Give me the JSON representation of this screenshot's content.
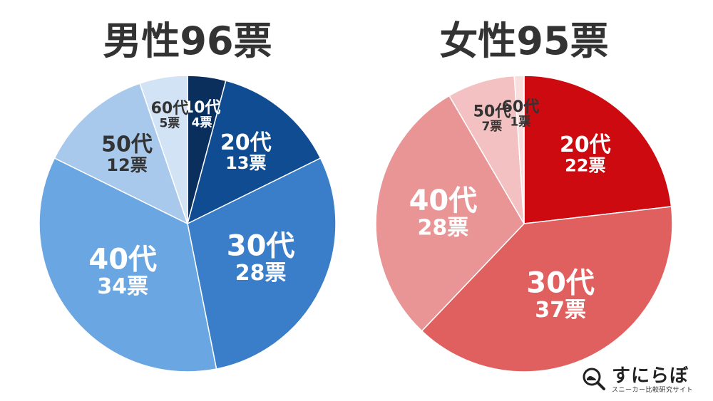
{
  "chart_data": [
    {
      "type": "pie",
      "title": "男性96票",
      "slices": [
        {
          "age": "10代",
          "votes": 4,
          "value_label": "4票",
          "color": "#0b2f5c",
          "text_color": "#ffffff"
        },
        {
          "age": "20代",
          "votes": 13,
          "value_label": "13票",
          "color": "#0f4c92",
          "text_color": "#ffffff"
        },
        {
          "age": "30代",
          "votes": 28,
          "value_label": "28票",
          "color": "#3a7dc8",
          "text_color": "#ffffff"
        },
        {
          "age": "40代",
          "votes": 34,
          "value_label": "34票",
          "color": "#6aa6e2",
          "text_color": "#ffffff"
        },
        {
          "age": "50代",
          "votes": 12,
          "value_label": "12票",
          "color": "#a9c9ec",
          "text_color": "#333333"
        },
        {
          "age": "60代",
          "votes": 5,
          "value_label": "5票",
          "color": "#d1e3f4",
          "text_color": "#333333"
        }
      ]
    },
    {
      "type": "pie",
      "title": "女性95票",
      "slices": [
        {
          "age": "20代",
          "votes": 22,
          "value_label": "22票",
          "color": "#cc0a10",
          "text_color": "#ffffff"
        },
        {
          "age": "30代",
          "votes": 37,
          "value_label": "37票",
          "color": "#e0605f",
          "text_color": "#ffffff"
        },
        {
          "age": "40代",
          "votes": 28,
          "value_label": "28票",
          "color": "#ea9595",
          "text_color": "#ffffff"
        },
        {
          "age": "50代",
          "votes": 7,
          "value_label": "7票",
          "color": "#f3c1c1",
          "text_color": "#333333"
        },
        {
          "age": "60代",
          "votes": 1,
          "value_label": "1票",
          "color": "#f9dede",
          "text_color": "#333333"
        }
      ]
    }
  ],
  "logo": {
    "name": "すにらぼ",
    "tagline": "スニーカー比較研究サイト",
    "icon": "magnifier-sneaker-icon"
  }
}
